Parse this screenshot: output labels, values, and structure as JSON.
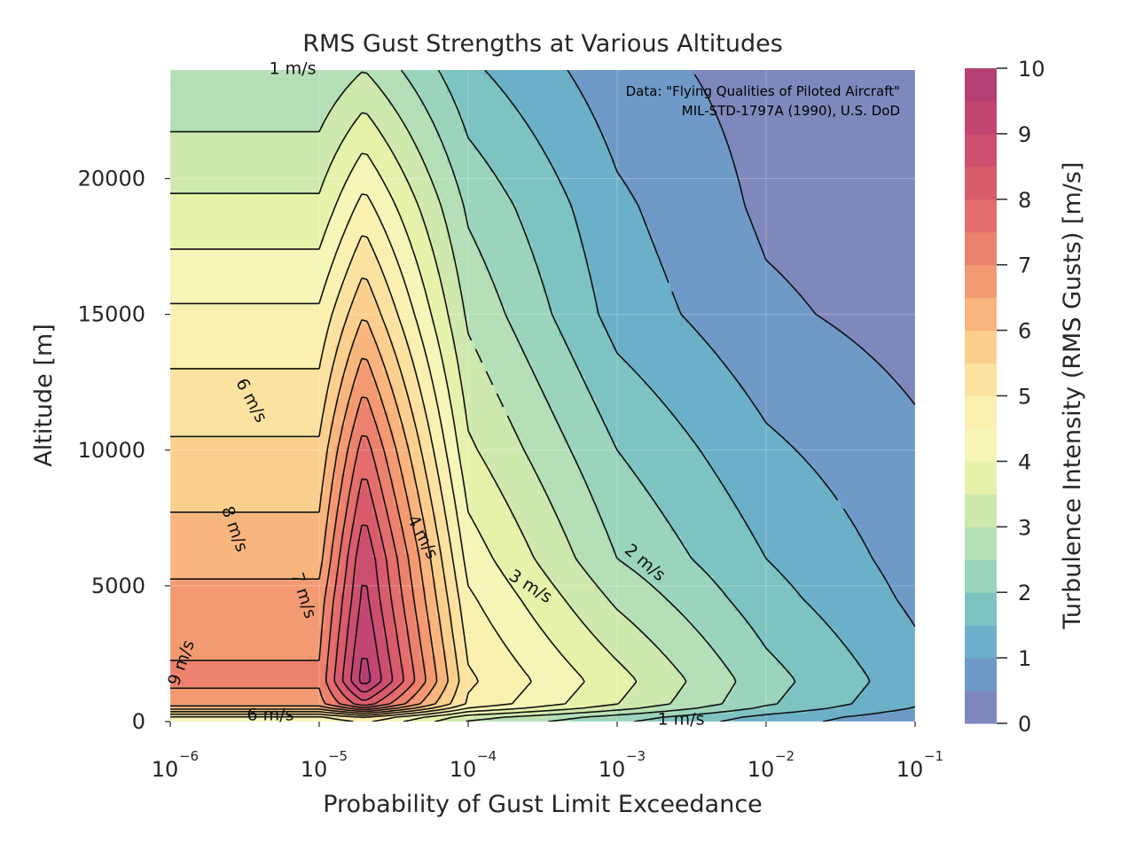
{
  "chart_data": {
    "type": "heatmap",
    "subtype": "filled-contour",
    "title": "RMS Gust Strengths at Various Altitudes",
    "xlabel": "Probability of Gust Limit Exceedance",
    "ylabel": "Altitude [m]",
    "x_scale": "log",
    "xlim": [
      1e-06,
      0.1
    ],
    "ylim": [
      0,
      24000
    ],
    "x_ticks": [
      {
        "base": "10",
        "exp": "−6"
      },
      {
        "base": "10",
        "exp": "−5"
      },
      {
        "base": "10",
        "exp": "−4"
      },
      {
        "base": "10",
        "exp": "−3"
      },
      {
        "base": "10",
        "exp": "−2"
      },
      {
        "base": "10",
        "exp": "−1"
      }
    ],
    "y_ticks": [
      "0",
      "5000",
      "10000",
      "15000",
      "20000"
    ],
    "annotation_lines": [
      "Data: \"Flying Qualities of Piloted Aircraft\"",
      "MIL-STD-1797A (1990), U.S. DoD"
    ],
    "colorbar": {
      "label": "Turbulence Intensity (RMS Gusts) [m/s]",
      "range": [
        0,
        10
      ],
      "ticks": [
        "0",
        "1",
        "2",
        "3",
        "4",
        "5",
        "6",
        "7",
        "8",
        "9",
        "10"
      ],
      "levels": 20,
      "colors": [
        "#7f88bd",
        "#6f99c7",
        "#6bb0c8",
        "#7dc3c1",
        "#9ad4bd",
        "#b5dfb6",
        "#cfe8ae",
        "#e6f2aa",
        "#f5f6b8",
        "#faf0b0",
        "#fbe2a0",
        "#fbcf8d",
        "#f8b57d",
        "#f39a73",
        "#ec826d",
        "#e46d6d",
        "#d95c6c",
        "#cd4f6f",
        "#c24572",
        "#b63f74"
      ]
    },
    "contour_labels": [
      "1 m/s",
      "2 m/s",
      "3 m/s",
      "4 m/s",
      "6 m/s",
      "7 m/s",
      "8 m/s",
      "9 m/s",
      "6 m/s",
      "1 m/s"
    ],
    "rms_model": {
      "probabilities": [
        2e-05,
        1e-05,
        0.0001,
        0.001,
        0.01,
        0.1
      ],
      "rows": [
        {
          "altitude_m": 152,
          "values": [
            7.5,
            6.6,
            4.8,
            3.4,
            2.0,
            1.0
          ]
        },
        {
          "altitude_m": 1500,
          "values": [
            9.8,
            7.1,
            5.1,
            3.7,
            2.2,
            1.2
          ]
        },
        {
          "altitude_m": 4500,
          "values": [
            9.2,
            6.7,
            4.6,
            2.9,
            1.7,
            0.9
          ]
        },
        {
          "altitude_m": 6000,
          "values": [
            9.0,
            6.3,
            4.3,
            2.5,
            1.5,
            0.8
          ]
        },
        {
          "altitude_m": 10000,
          "values": [
            7.8,
            5.6,
            3.6,
            2.0,
            1.1,
            0.6
          ]
        },
        {
          "altitude_m": 15000,
          "values": [
            6.0,
            4.6,
            2.9,
            1.3,
            0.6,
            0.3
          ]
        },
        {
          "altitude_m": 19000,
          "values": [
            4.7,
            3.6,
            2.4,
            1.1,
            0.4,
            0.2
          ]
        },
        {
          "altitude_m": 24000,
          "values": [
            3.0,
            2.5,
            1.6,
            0.7,
            0.3,
            0.1
          ]
        }
      ]
    }
  }
}
